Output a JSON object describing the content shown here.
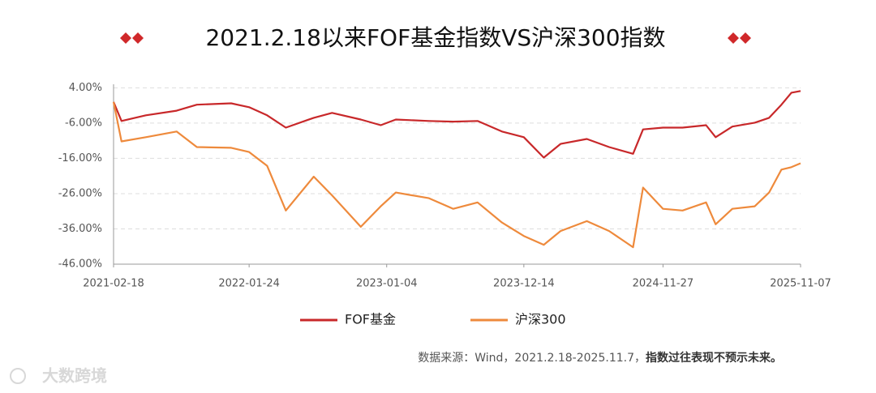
{
  "chart_data": {
    "type": "line",
    "title": "2021.2.18以来FOF基金指数VS沪深300指数",
    "x": [
      "2021-02-18",
      "2021-03-10",
      "2021-05-10",
      "2021-07-26",
      "2021-09-15",
      "2021-12-10",
      "2022-01-24",
      "2022-03-10",
      "2022-04-26",
      "2022-07-05",
      "2022-08-20",
      "2022-10-31",
      "2022-12-20",
      "2023-01-27",
      "2023-04-20",
      "2023-06-20",
      "2023-08-20",
      "2023-10-20",
      "2023-12-14",
      "2024-02-02",
      "2024-03-15",
      "2024-05-20",
      "2024-07-15",
      "2024-09-13",
      "2024-10-08",
      "2024-11-27",
      "2025-01-15",
      "2025-03-15",
      "2025-04-08",
      "2025-05-20",
      "2025-07-15",
      "2025-08-20",
      "2025-09-20",
      "2025-10-15",
      "2025-11-07"
    ],
    "series": [
      {
        "name": "FOF基金",
        "color": "#c8282a",
        "values": [
          0,
          -5.4,
          -3.8,
          -2.5,
          -0.8,
          -0.4,
          -1.5,
          -3.8,
          -7.3,
          -4.5,
          -3.1,
          -5.0,
          -6.6,
          -5.0,
          -5.4,
          -5.6,
          -5.4,
          -8.4,
          -10.0,
          -15.8,
          -11.9,
          -10.5,
          -12.8,
          -14.7,
          -7.8,
          -7.3,
          -7.3,
          -6.6,
          -10.0,
          -7.0,
          -5.9,
          -4.5,
          -0.8,
          2.6,
          3.1
        ]
      },
      {
        "name": "沪深300",
        "color": "#ee8a3c",
        "values": [
          0,
          -11.2,
          -10.0,
          -8.4,
          -12.8,
          -13.0,
          -14.2,
          -18.1,
          -30.8,
          -21.2,
          -26.5,
          -35.4,
          -29.6,
          -25.7,
          -27.3,
          -30.3,
          -28.5,
          -34.2,
          -38.0,
          -40.5,
          -36.6,
          -33.8,
          -36.6,
          -41.2,
          -24.3,
          -30.3,
          -30.8,
          -28.5,
          -34.7,
          -30.3,
          -29.6,
          -25.7,
          -19.2,
          -18.5,
          -17.4
        ]
      }
    ],
    "xlim": [
      "2021-02-18",
      "2025-11-07"
    ],
    "xticks": [
      "2021-02-18",
      "2022-01-24",
      "2023-01-04",
      "2023-12-14",
      "2024-11-27",
      "2025-11-07"
    ],
    "ylim": [
      -46,
      5
    ],
    "yticks": [
      {
        "value": 4,
        "label": "4.00%"
      },
      {
        "value": -6,
        "label": "-6.00%"
      },
      {
        "value": -16,
        "label": "-16.00%"
      },
      {
        "value": -26,
        "label": "-26.00%"
      },
      {
        "value": -36,
        "label": "-36.00%"
      },
      {
        "value": -46,
        "label": "-46.00%"
      }
    ],
    "grid": true,
    "source": "数据来源：Wind，2021.2.18-2025.11.7，",
    "disclaimer": "指数过往表现不预示未来。"
  },
  "watermark": "大数跨境"
}
